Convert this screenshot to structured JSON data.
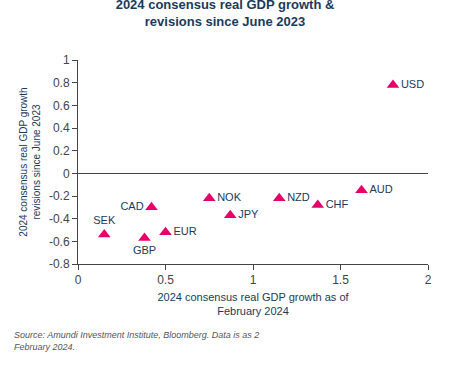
{
  "chart_data": {
    "type": "scatter",
    "title": "2024 consensus real GDP growth &\nrevisions since June 2023",
    "x_label": "2024 consensus real GDP growth as of\nFebruary 2024",
    "y_label": "2024 consensus real GDP growth\nrevisions since June 2023",
    "source": "Source: Amundi Investment Institute, Bloomberg. Data is as 2\nFebruary 2024.",
    "labels": [
      "USD",
      "AUD",
      "CHF",
      "NZD",
      "NOK",
      "JPY",
      "EUR",
      "GBP",
      "CAD",
      "SEK"
    ],
    "x": [
      1.8,
      1.62,
      1.37,
      1.15,
      0.75,
      0.87,
      0.5,
      0.38,
      0.42,
      0.15
    ],
    "values": [
      0.78,
      -0.15,
      -0.28,
      -0.22,
      -0.22,
      -0.37,
      -0.52,
      -0.57,
      -0.3,
      -0.54
    ],
    "color": "#E8006A",
    "marker": "triangle-up",
    "xlim": [
      0,
      2
    ],
    "ylim": [
      -0.8,
      1.0
    ],
    "xticks": [
      0,
      0.5,
      1,
      1.5,
      2
    ],
    "yticks": [
      -0.8,
      -0.6,
      -0.4,
      -0.2,
      0,
      0.2,
      0.4,
      0.6,
      0.8,
      1
    ],
    "grid": false
  }
}
